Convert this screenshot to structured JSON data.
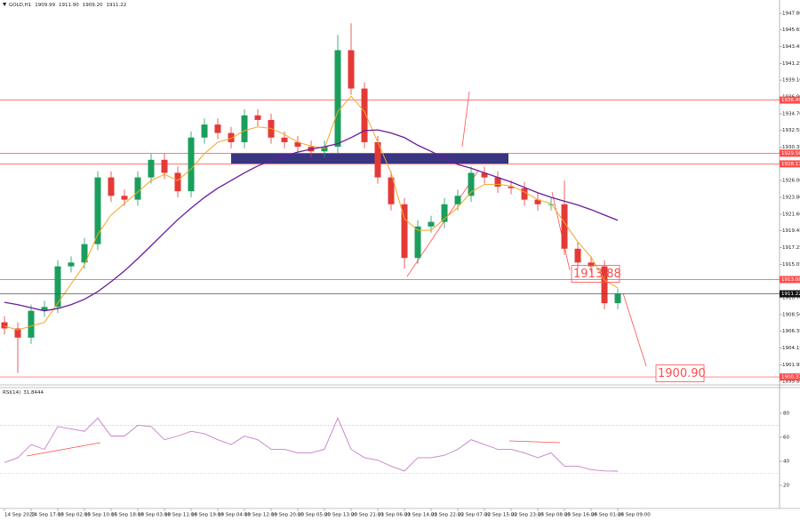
{
  "chart_data": {
    "type": "candlestick",
    "title": "GOLD,H1",
    "header": [
      "1909.99",
      "1911.90",
      "1909.20",
      "1911.22"
    ],
    "up_color": "#1a9e5c",
    "down_color": "#e53935",
    "categories": [
      "14 Sep 2023",
      null,
      "14 Sep 17:00",
      null,
      "15 Sep 02:00",
      null,
      "15 Sep 10:00",
      null,
      "15 Sep 18:00",
      null,
      "18 Sep 03:00",
      null,
      "18 Sep 11:00",
      null,
      "18 Sep 19:00",
      null,
      "19 Sep 04:00",
      null,
      "19 Sep 12:00",
      null,
      "19 Sep 20:00",
      null,
      "20 Sep 05:00",
      null,
      "20 Sep 13:00",
      null,
      "20 Sep 21:00",
      null,
      "21 Sep 06:00",
      null,
      "21 Sep 14:00",
      null,
      "21 Sep 22:00",
      null,
      "22 Sep 07:00",
      null,
      "22 Sep 15:00",
      null,
      "22 Sep 23:00",
      null,
      "25 Sep 08:00",
      null,
      "25 Sep 16:00",
      null,
      "26 Sep 01:00",
      null,
      "26 Sep 09:00"
    ],
    "ohlc": [
      [
        1907.5,
        1908.3,
        1905.9,
        1906.7
      ],
      [
        1906.7,
        1907.5,
        1900.9,
        1905.5
      ],
      [
        1905.5,
        1909.8,
        1904.7,
        1909.0
      ],
      [
        1909.0,
        1910.3,
        1908.2,
        1909.5
      ],
      [
        1909.5,
        1915.6,
        1908.7,
        1914.8
      ],
      [
        1914.8,
        1916.1,
        1914.0,
        1915.3
      ],
      [
        1915.3,
        1918.5,
        1914.5,
        1917.7
      ],
      [
        1917.7,
        1927.2,
        1916.9,
        1926.4
      ],
      [
        1926.4,
        1927.2,
        1923.2,
        1924.0
      ],
      [
        1924.0,
        1924.8,
        1922.7,
        1923.5
      ],
      [
        1923.5,
        1927.2,
        1922.7,
        1926.4
      ],
      [
        1926.4,
        1929.5,
        1925.6,
        1928.7
      ],
      [
        1928.7,
        1929.5,
        1926.2,
        1927.0
      ],
      [
        1927.0,
        1927.8,
        1923.8,
        1924.6
      ],
      [
        1924.6,
        1932.4,
        1923.8,
        1931.6
      ],
      [
        1931.6,
        1934.1,
        1930.8,
        1933.3
      ],
      [
        1933.3,
        1934.1,
        1931.4,
        1932.2
      ],
      [
        1932.2,
        1933.0,
        1930.2,
        1931.0
      ],
      [
        1931.0,
        1935.3,
        1930.2,
        1934.5
      ],
      [
        1934.5,
        1935.3,
        1933.1,
        1933.9
      ],
      [
        1933.9,
        1934.7,
        1930.8,
        1931.6
      ],
      [
        1931.6,
        1932.4,
        1930.2,
        1931.0
      ],
      [
        1931.0,
        1931.8,
        1929.6,
        1930.4
      ],
      [
        1930.4,
        1931.2,
        1929.0,
        1929.8
      ],
      [
        1929.8,
        1931.2,
        1929.0,
        1930.4
      ],
      [
        1930.4,
        1945.0,
        1929.6,
        1943.0
      ],
      [
        1943.0,
        1946.5,
        1937.2,
        1938.0
      ],
      [
        1938.0,
        1938.8,
        1930.2,
        1931.0
      ],
      [
        1931.0,
        1931.8,
        1925.6,
        1926.4
      ],
      [
        1926.4,
        1927.2,
        1922.1,
        1922.9
      ],
      [
        1922.9,
        1923.7,
        1914.5,
        1915.9
      ],
      [
        1915.9,
        1920.8,
        1915.1,
        1920.0
      ],
      [
        1920.0,
        1921.4,
        1919.2,
        1920.6
      ],
      [
        1920.6,
        1923.7,
        1919.8,
        1922.9
      ],
      [
        1922.9,
        1924.8,
        1922.1,
        1924.0
      ],
      [
        1924.0,
        1927.8,
        1923.2,
        1927.0
      ],
      [
        1927.0,
        1927.8,
        1925.6,
        1926.4
      ],
      [
        1926.4,
        1927.2,
        1924.4,
        1925.2
      ],
      [
        1925.2,
        1926.0,
        1924.2,
        1925.0
      ],
      [
        1925.0,
        1925.8,
        1922.7,
        1923.5
      ],
      [
        1923.5,
        1924.3,
        1922.1,
        1922.9
      ],
      [
        1922.9,
        1923.7,
        1922.1,
        1922.9
      ],
      [
        1922.9,
        1926.0,
        1916.3,
        1917.1
      ],
      [
        1917.1,
        1917.9,
        1914.5,
        1915.3
      ],
      [
        1915.3,
        1916.1,
        1914.0,
        1914.8
      ],
      [
        1914.8,
        1915.6,
        1909.2,
        1909.99
      ],
      [
        1909.99,
        1911.9,
        1909.2,
        1911.22
      ]
    ],
    "series": [
      {
        "color": "#f5a623",
        "values": [
          1907,
          1906.5,
          1907,
          1907.5,
          1910,
          1912.5,
          1915,
          1919,
          1921.5,
          1923,
          1924.5,
          1926,
          1926.8,
          1926,
          1927.5,
          1929.5,
          1931,
          1931.5,
          1932.5,
          1933,
          1932.8,
          1932,
          1931,
          1930.5,
          1930.2,
          1935,
          1937,
          1935,
          1931,
          1927,
          1921,
          1919.5,
          1919.5,
          1921,
          1922.5,
          1924.5,
          1925.5,
          1925.5,
          1925.3,
          1924.5,
          1923.5,
          1923,
          1920.5,
          1918,
          1916,
          1913,
          1912
        ]
      },
      {
        "color": "#6a1b9a",
        "values": [
          1910.1,
          1909.8,
          1909.4,
          1909.0,
          1909.3,
          1909.8,
          1910.5,
          1911.5,
          1912.8,
          1914.2,
          1915.8,
          1917.5,
          1919.2,
          1920.9,
          1922.4,
          1923.8,
          1925.0,
          1926.0,
          1927.0,
          1927.9,
          1928.6,
          1929.2,
          1929.7,
          1930.1,
          1930.4,
          1930.8,
          1931.6,
          1932.5,
          1932.6,
          1932.2,
          1931.6,
          1930.6,
          1929.8,
          1928.9,
          1928.1,
          1927.6,
          1927.0,
          1926.4,
          1925.8,
          1925.1,
          1924.4,
          1923.8,
          1923.3,
          1922.8,
          1922.2,
          1921.5,
          1920.8
        ]
      }
    ],
    "ylim": [
      1899.45,
      1949.55
    ],
    "yticks": [
      {
        "value": 1947.8,
        "label": "1947.80"
      },
      {
        "value": 1945.65,
        "label": "1945.65"
      },
      {
        "value": 1943.45,
        "label": "1943.45"
      },
      {
        "value": 1941.25,
        "label": "1941.25"
      },
      {
        "value": 1939.1,
        "label": "1939.10"
      },
      {
        "value": 1936.9,
        "label": "1936.90"
      },
      {
        "value": 1934.7,
        "label": "1934.70"
      },
      {
        "value": 1932.55,
        "label": "1932.55"
      },
      {
        "value": 1930.35,
        "label": "1930.35"
      },
      {
        "value": 1928.15,
        "label": "1928.15"
      },
      {
        "value": 1926,
        "label": "1926.00"
      },
      {
        "value": 1923.8,
        "label": "1923.80"
      },
      {
        "value": 1921.6,
        "label": "1921.60"
      },
      {
        "value": 1919.45,
        "label": "1919.45"
      },
      {
        "value": 1917.25,
        "label": "1917.25"
      },
      {
        "value": 1915.05,
        "label": "1915.05"
      },
      {
        "value": 1912.9,
        "label": "1912.90"
      },
      {
        "value": 1910.7,
        "label": "1910.70"
      },
      {
        "value": 1908.5,
        "label": "1908.50"
      },
      {
        "value": 1906.35,
        "label": "1906.35"
      },
      {
        "value": 1904.15,
        "label": "1904.15"
      },
      {
        "value": 1901.95,
        "label": "1901.95"
      },
      {
        "value": 1899.8,
        "label": "1899.80"
      }
    ],
    "levels": [
      {
        "value": 1936.49
      },
      {
        "value": 1929.56
      },
      {
        "value": 1928.17
      },
      {
        "value": 1913.08
      },
      {
        "value": 1900.37
      }
    ],
    "level_color": "#ff4d4d",
    "zone_color": "#2e2a7a",
    "annotations": [
      {
        "value": 1913.88
      },
      {
        "value": 1900.9,
        "label": "1900.90"
      }
    ],
    "rsi": {
      "title": "RSI(14)",
      "color": "#c77dcc",
      "values": [
        39,
        43,
        54,
        50,
        69,
        67,
        65,
        76,
        61,
        61,
        70,
        69,
        58,
        61,
        65,
        63,
        58,
        54,
        61,
        58,
        50,
        50,
        47,
        47,
        50,
        76,
        50,
        43,
        41,
        36,
        32,
        43,
        43,
        45,
        50,
        58,
        54,
        50,
        50,
        47,
        43,
        47,
        36,
        36,
        33,
        32,
        31.8444
      ],
      "ylim": [
        1.5,
        100.7
      ],
      "yticks": [
        20,
        40,
        60,
        80
      ],
      "levels": [
        30,
        70
      ]
    }
  }
}
